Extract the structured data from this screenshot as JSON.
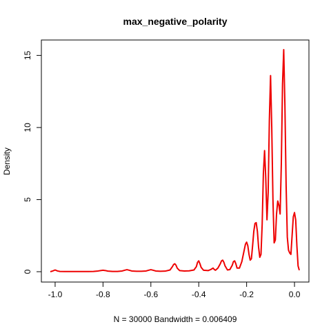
{
  "chart_data": {
    "type": "line",
    "title": "max_negative_polarity",
    "xlabel": "N = 30000   Bandwidth = 0.006409",
    "ylabel": "Density",
    "xlim": [
      -1.0,
      0.02
    ],
    "ylim": [
      0,
      15.4
    ],
    "x_ticks": [
      -1.0,
      -0.8,
      -0.6,
      -0.4,
      -0.2,
      0.0
    ],
    "x_tick_labels": [
      "-1.0",
      "-0.8",
      "-0.6",
      "-0.4",
      "-0.2",
      "0.0"
    ],
    "y_ticks": [
      0,
      5,
      10,
      15
    ],
    "y_tick_labels": [
      "0",
      "5",
      "10",
      "15"
    ],
    "grid": false,
    "series_color": "#ee0000",
    "x": [
      -1.02,
      -1.01,
      -1.0,
      -0.99,
      -0.98,
      -0.96,
      -0.94,
      -0.92,
      -0.9,
      -0.88,
      -0.86,
      -0.84,
      -0.82,
      -0.81,
      -0.8,
      -0.79,
      -0.78,
      -0.76,
      -0.74,
      -0.72,
      -0.71,
      -0.7,
      -0.69,
      -0.68,
      -0.66,
      -0.64,
      -0.62,
      -0.61,
      -0.6,
      -0.59,
      -0.58,
      -0.56,
      -0.54,
      -0.52,
      -0.51,
      -0.505,
      -0.5,
      -0.495,
      -0.49,
      -0.48,
      -0.46,
      -0.44,
      -0.42,
      -0.41,
      -0.405,
      -0.4,
      -0.395,
      -0.39,
      -0.38,
      -0.36,
      -0.35,
      -0.34,
      -0.335,
      -0.33,
      -0.32,
      -0.31,
      -0.305,
      -0.3,
      -0.295,
      -0.29,
      -0.28,
      -0.27,
      -0.26,
      -0.255,
      -0.25,
      -0.245,
      -0.24,
      -0.23,
      -0.22,
      -0.21,
      -0.205,
      -0.2,
      -0.195,
      -0.19,
      -0.185,
      -0.18,
      -0.175,
      -0.17,
      -0.165,
      -0.16,
      -0.155,
      -0.15,
      -0.145,
      -0.14,
      -0.135,
      -0.13,
      -0.125,
      -0.12,
      -0.115,
      -0.11,
      -0.105,
      -0.1,
      -0.095,
      -0.09,
      -0.085,
      -0.08,
      -0.075,
      -0.07,
      -0.065,
      -0.06,
      -0.055,
      -0.05,
      -0.045,
      -0.04,
      -0.035,
      -0.03,
      -0.025,
      -0.02,
      -0.015,
      -0.01,
      -0.005,
      0.0,
      0.005,
      0.01,
      0.015,
      0.02
    ],
    "y": [
      0.0,
      0.05,
      0.12,
      0.05,
      0.02,
      0.01,
      0.01,
      0.01,
      0.01,
      0.01,
      0.01,
      0.02,
      0.05,
      0.08,
      0.1,
      0.08,
      0.04,
      0.02,
      0.02,
      0.05,
      0.1,
      0.14,
      0.1,
      0.05,
      0.03,
      0.03,
      0.05,
      0.1,
      0.14,
      0.1,
      0.05,
      0.03,
      0.04,
      0.12,
      0.35,
      0.5,
      0.55,
      0.45,
      0.25,
      0.08,
      0.05,
      0.06,
      0.12,
      0.35,
      0.65,
      0.75,
      0.55,
      0.3,
      0.1,
      0.08,
      0.15,
      0.25,
      0.15,
      0.1,
      0.25,
      0.55,
      0.75,
      0.8,
      0.65,
      0.4,
      0.12,
      0.15,
      0.45,
      0.7,
      0.75,
      0.55,
      0.25,
      0.25,
      0.7,
      1.5,
      1.9,
      2.05,
      1.8,
      1.2,
      0.8,
      0.9,
      1.8,
      2.8,
      3.35,
      3.4,
      2.8,
      1.7,
      1.0,
      1.2,
      3.3,
      6.8,
      8.4,
      6.5,
      3.6,
      5.5,
      10.5,
      13.6,
      10.0,
      5.0,
      2.0,
      2.2,
      4.0,
      4.9,
      4.6,
      4.0,
      7.5,
      13.0,
      15.4,
      11.5,
      6.0,
      2.4,
      1.5,
      1.3,
      1.2,
      2.5,
      3.8,
      4.1,
      3.6,
      1.8,
      0.4,
      0.1
    ]
  }
}
